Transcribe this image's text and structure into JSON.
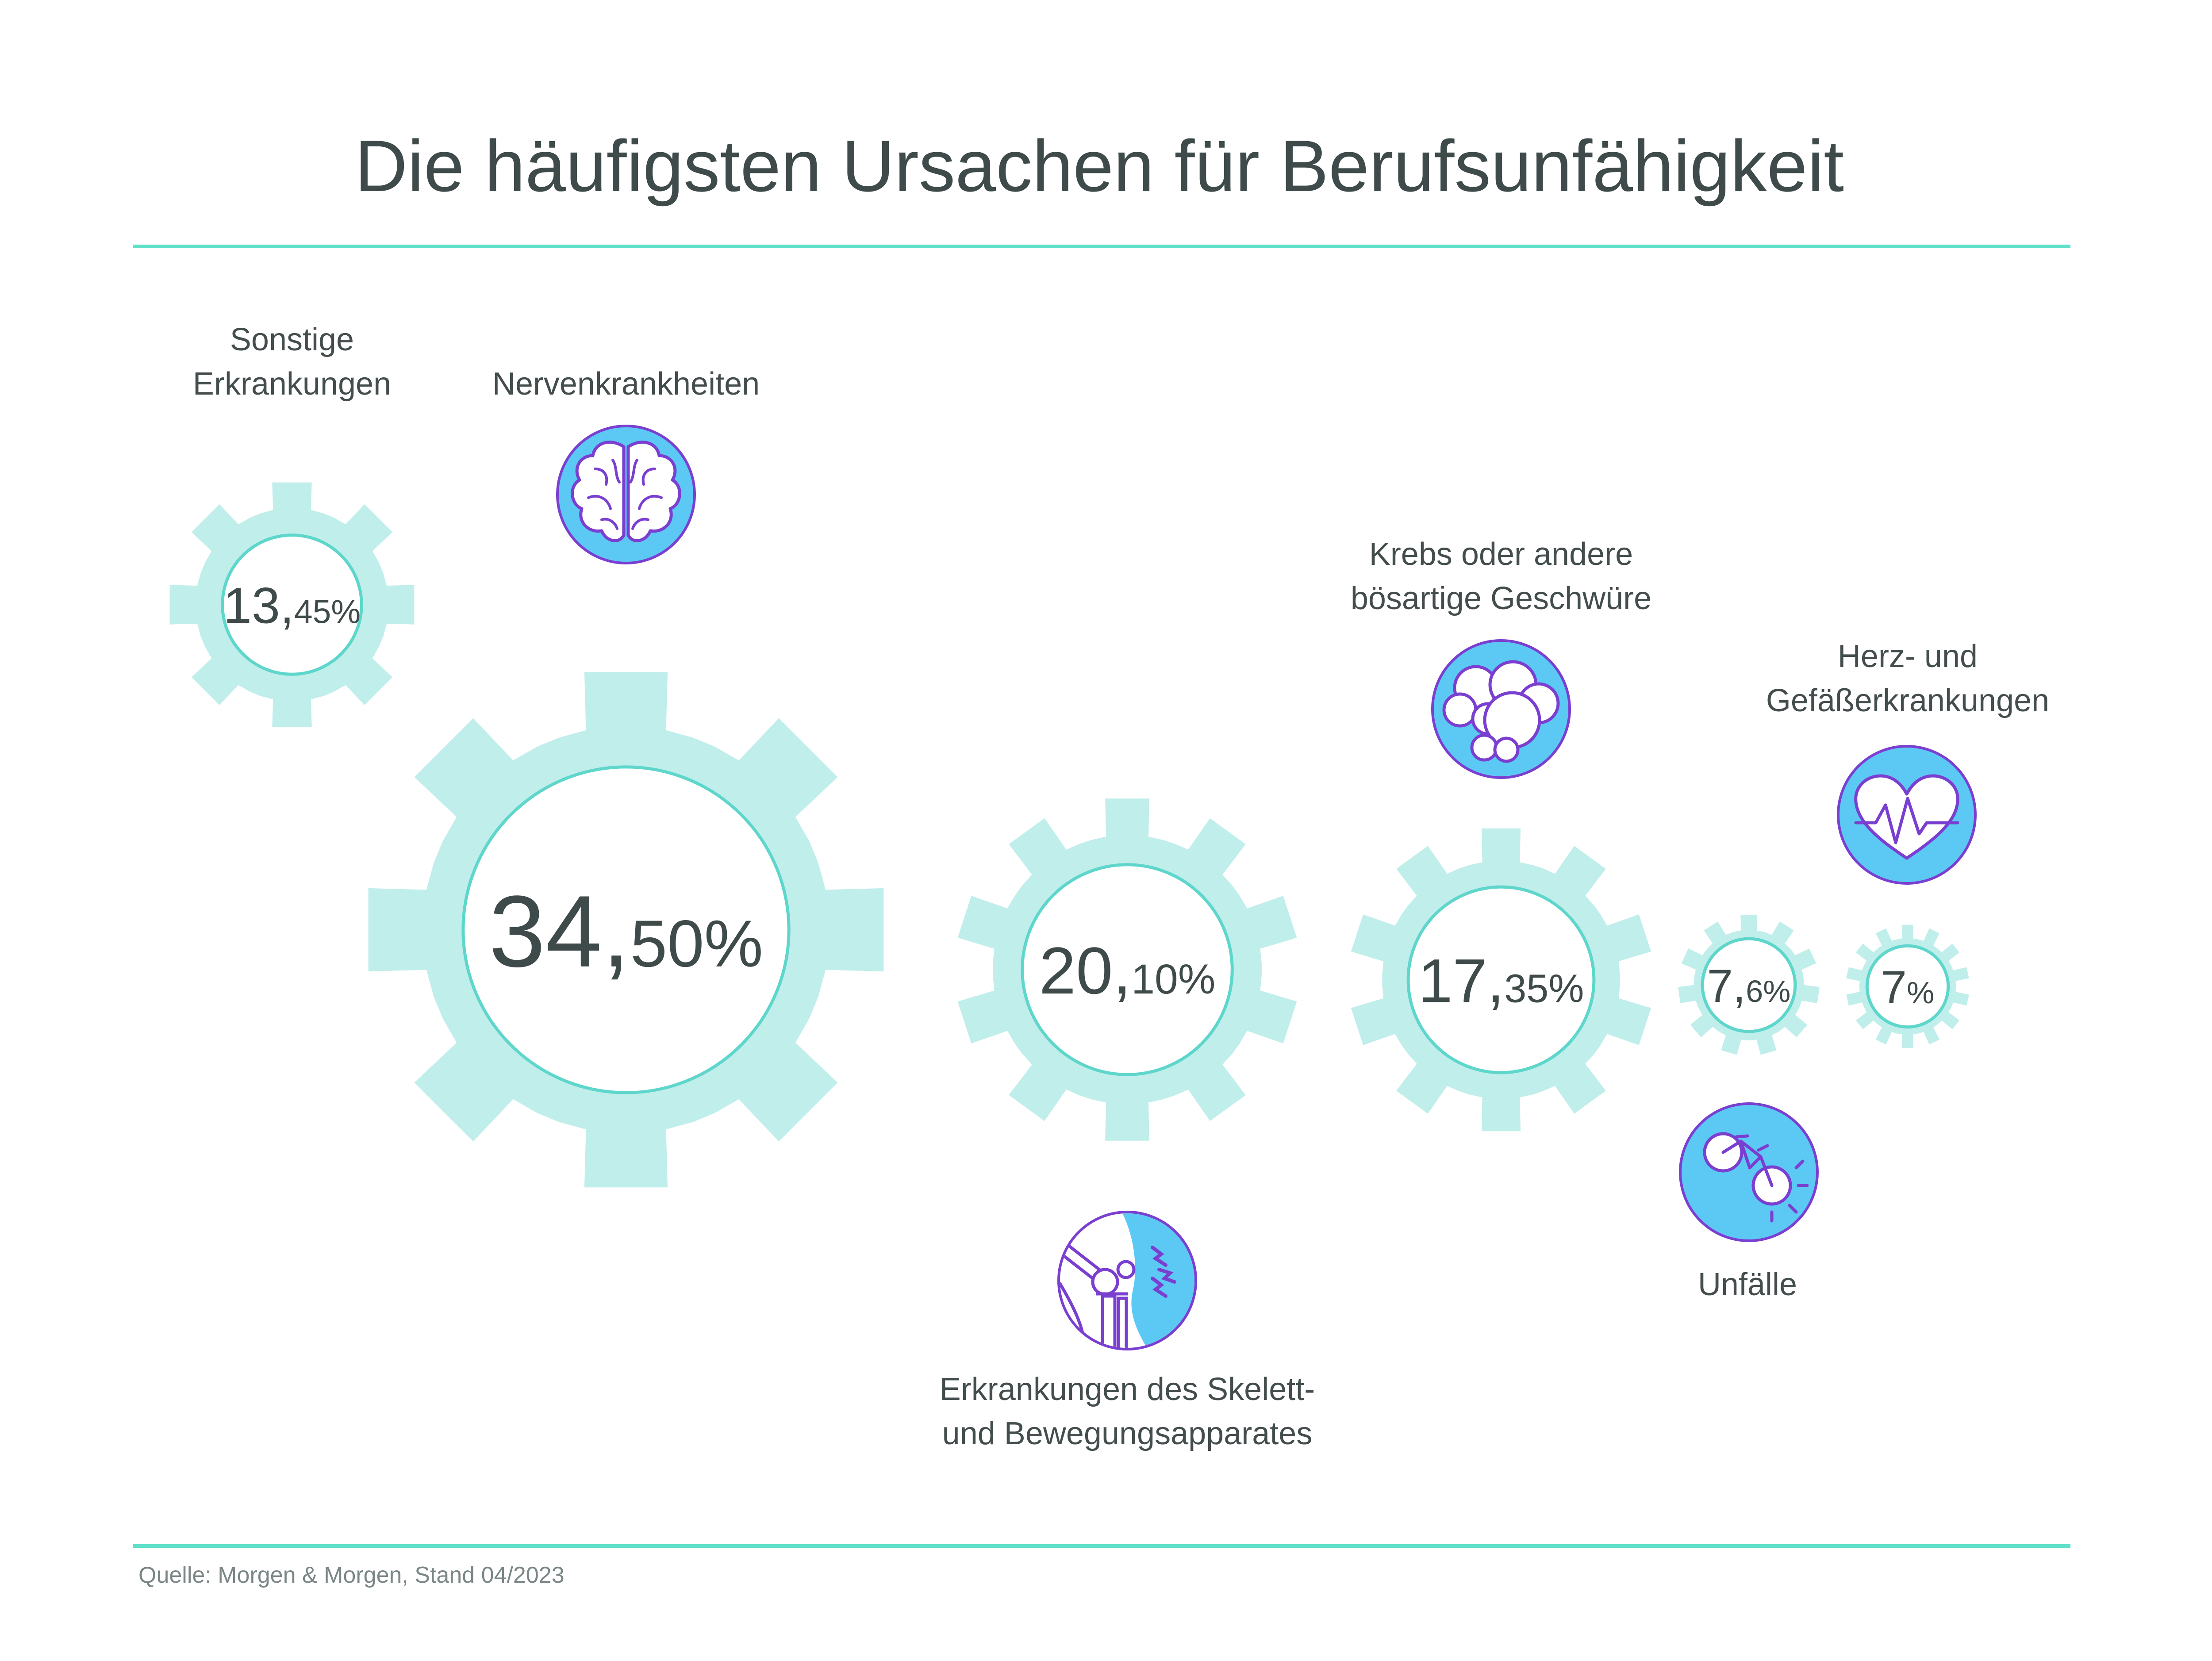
{
  "title": "Die häufigsten Ursachen für Berufsunfähigkeit",
  "source": "Quelle: Morgen & Morgen, Stand 04/2023",
  "colors": {
    "gear": "#c0eeeb",
    "gear_ring": "#5fd6cb",
    "line": "#5fe0c8",
    "icon_fill": "#5cc9f5",
    "icon_stroke": "#7a3fd0",
    "text": "#3f4a4a"
  },
  "labels": {
    "sonstige_line1": "Sonstige",
    "sonstige_line2": "Erkrankungen",
    "nerven": "Nervenkrankheiten",
    "krebs_line1": "Krebs oder andere",
    "krebs_line2": "bösartige Geschwüre",
    "herz_line1": "Herz- und",
    "herz_line2": "Gefäßerkrankungen",
    "skelett_line1": "Erkrankungen des Skelett-",
    "skelett_line2": "und Bewegungsapparates",
    "unfaelle": "Unfälle"
  },
  "chart_data": {
    "type": "other",
    "title": "Die häufigsten Ursachen für Berufsunfähigkeit",
    "unit": "%",
    "categories": [
      "Nervenkrankheiten",
      "Erkrankungen des Skelett- und Bewegungsapparates",
      "Krebs oder andere bösartige Geschwüre",
      "Sonstige Erkrankungen",
      "Unfälle",
      "Herz- und Gefäßerkrankungen"
    ],
    "values": [
      34.5,
      20.1,
      17.35,
      13.45,
      7.6,
      7
    ],
    "value_labels": [
      {
        "int": "34,",
        "dec": "50%"
      },
      {
        "int": "20,",
        "dec": "10%"
      },
      {
        "int": "17,",
        "dec": "35%"
      },
      {
        "int": "13,",
        "dec": "45%"
      },
      {
        "int": "7,",
        "dec": "6%"
      },
      {
        "int": "7",
        "dec": "%"
      }
    ]
  }
}
